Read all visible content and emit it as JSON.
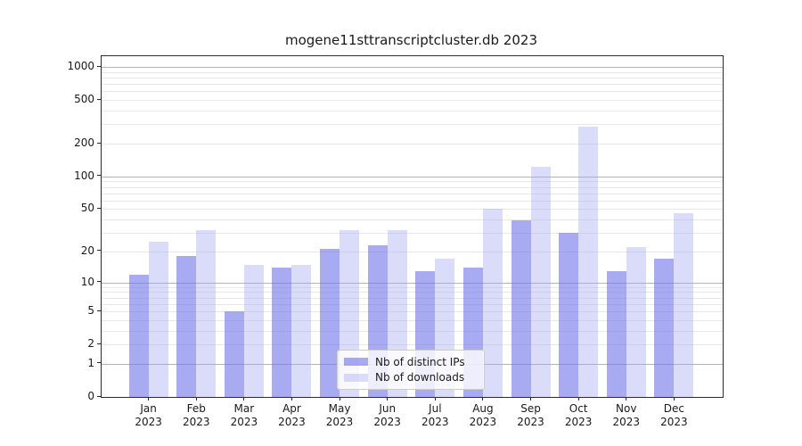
{
  "chart_data": {
    "type": "bar",
    "title": "mogene11sttranscriptcluster.db 2023",
    "categories": [
      "Jan",
      "Feb",
      "Mar",
      "Apr",
      "May",
      "Jun",
      "Jul",
      "Aug",
      "Sep",
      "Oct",
      "Nov",
      "Dec"
    ],
    "year_label": "2023",
    "series": [
      {
        "name": "Nb of distinct IPs",
        "values": [
          12,
          18,
          5,
          14,
          21,
          23,
          13,
          14,
          39,
          30,
          13,
          17
        ]
      },
      {
        "name": "Nb of downloads",
        "values": [
          25,
          32,
          15,
          15,
          32,
          32,
          17,
          50,
          123,
          285,
          22,
          46
        ]
      }
    ],
    "xlabel": "",
    "ylabel": "",
    "y_ticks": [
      0,
      1,
      2,
      5,
      10,
      20,
      50,
      100,
      200,
      500,
      1000
    ],
    "ylim": [
      0,
      1250
    ],
    "yscale": "pseudo-log: position = log10(value+1)",
    "grid": "minor gridlines at 2-9,20-90,200-900; darker lines at decades 1,10,100,1000",
    "legend_position": "bottom-center",
    "colors": {
      "distinct_ips_bar": "rgba(115,118,234,0.62)",
      "downloads_bar": "rgba(160,163,239,0.38)",
      "distinct_ips_rendered": "#a8aaf2",
      "downloads_rendered": "#dbdcf9",
      "major_grid": "#b3b3b3",
      "minor_grid": "#e8e8e8"
    }
  }
}
